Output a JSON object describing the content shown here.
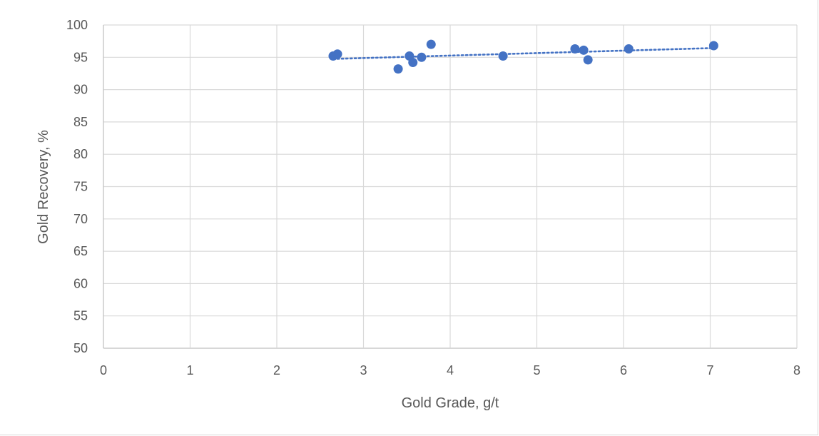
{
  "chart_data": {
    "type": "scatter",
    "title": "",
    "xlabel": "Gold Grade, g/t",
    "ylabel": "Gold Recovery, %",
    "xlim": [
      0,
      8
    ],
    "ylim": [
      50,
      100
    ],
    "x_ticks": [
      0,
      1,
      2,
      3,
      4,
      5,
      6,
      7,
      8
    ],
    "y_ticks": [
      50,
      55,
      60,
      65,
      70,
      75,
      80,
      85,
      90,
      95,
      100
    ],
    "grid": true,
    "legend": "none",
    "series": [
      {
        "color": "#4472c4",
        "points": [
          {
            "x": 2.65,
            "y": 95.2
          },
          {
            "x": 2.7,
            "y": 95.5
          },
          {
            "x": 3.4,
            "y": 93.2
          },
          {
            "x": 3.53,
            "y": 95.2
          },
          {
            "x": 3.57,
            "y": 94.2
          },
          {
            "x": 3.67,
            "y": 95.0
          },
          {
            "x": 3.78,
            "y": 97.0
          },
          {
            "x": 4.61,
            "y": 95.2
          },
          {
            "x": 5.44,
            "y": 96.3
          },
          {
            "x": 5.54,
            "y": 96.1
          },
          {
            "x": 5.59,
            "y": 94.6
          },
          {
            "x": 6.06,
            "y": 96.3
          },
          {
            "x": 7.04,
            "y": 96.8
          }
        ],
        "trendline": {
          "type": "linear",
          "style": "dotted",
          "x_range": [
            2.65,
            7.04
          ]
        }
      }
    ]
  }
}
